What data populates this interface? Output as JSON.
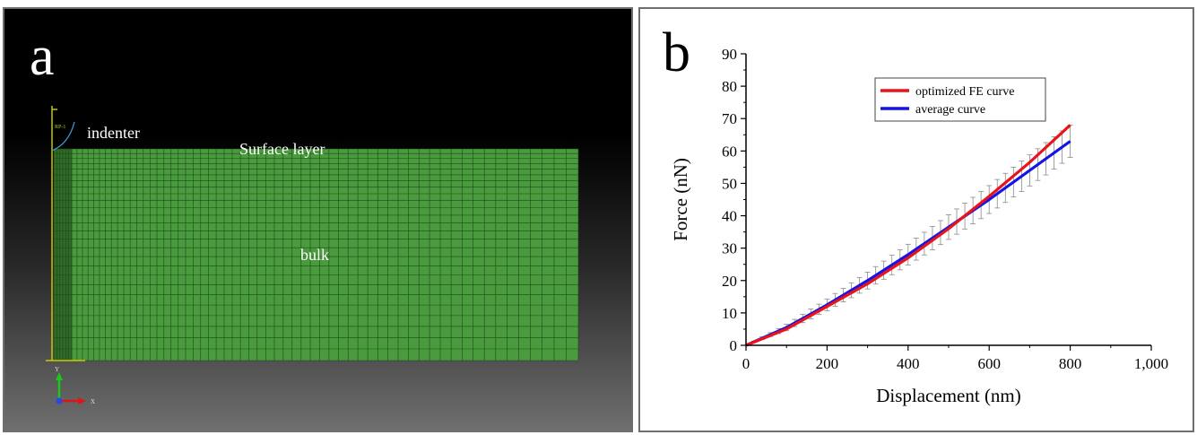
{
  "panel_a": {
    "letter": "a",
    "labels": {
      "indenter": "indenter",
      "surface_layer": "Surface layer",
      "bulk": "bulk"
    },
    "indenter_node_label": "RP-1",
    "axis_triad": {
      "y_label": "Y",
      "x_label": "X"
    },
    "mesh": {
      "columns": 64,
      "rows": 26,
      "fine_columns": 6,
      "color": "#4a9a3e",
      "line_color": "#1f4a1a"
    },
    "colors": {
      "indenter": "#c8c800",
      "background_top": "#000000",
      "background_bottom": "#6f6f6f"
    }
  },
  "panel_b": {
    "letter": "b",
    "chart_data": {
      "type": "line",
      "xlabel": "Displacement (nm)",
      "ylabel": "Force (nN)",
      "xlim": [
        0,
        1000
      ],
      "ylim": [
        0,
        90
      ],
      "xticks": [
        0,
        200,
        400,
        600,
        800,
        1000
      ],
      "xtick_labels": [
        "0",
        "200",
        "400",
        "600",
        "800",
        "1,000"
      ],
      "yticks": [
        0,
        10,
        20,
        30,
        40,
        50,
        60,
        70,
        80,
        90
      ],
      "ytick_labels": [
        "0",
        "10",
        "20",
        "30",
        "40",
        "50",
        "60",
        "70",
        "80",
        "90"
      ],
      "grid": false,
      "legend_position": "top-center",
      "series": [
        {
          "name": "optimized FE curve",
          "color": "#e8141c",
          "x": [
            0,
            100,
            200,
            300,
            400,
            500,
            600,
            700,
            800
          ],
          "y": [
            0,
            5,
            12,
            19,
            27,
            36,
            46,
            56.5,
            68
          ]
        },
        {
          "name": "average curve",
          "color": "#1414e6",
          "x": [
            0,
            100,
            200,
            300,
            400,
            500,
            600,
            700,
            800
          ],
          "y": [
            0,
            5.5,
            12.5,
            20,
            28,
            36.5,
            45,
            54,
            63
          ],
          "error_bar": {
            "x": [
              20,
              40,
              60,
              80,
              100,
              120,
              140,
              160,
              180,
              200,
              220,
              240,
              260,
              280,
              300,
              320,
              340,
              360,
              380,
              400,
              420,
              440,
              460,
              480,
              500,
              520,
              540,
              560,
              580,
              600,
              620,
              640,
              660,
              680,
              700,
              720,
              740,
              760,
              780,
              800
            ],
            "plus": [
              0.2,
              0.4,
              0.6,
              0.8,
              1.0,
              1.1,
              1.3,
              1.5,
              1.6,
              1.8,
              2.0,
              2.1,
              2.3,
              2.4,
              2.6,
              2.7,
              2.8,
              3.0,
              3.1,
              3.2,
              3.4,
              3.5,
              3.6,
              3.7,
              3.8,
              3.9,
              4.0,
              4.1,
              4.2,
              4.3,
              4.4,
              4.5,
              4.6,
              4.7,
              4.8,
              4.9,
              5.0,
              5.0,
              5.0,
              5.0
            ],
            "minus": [
              0.2,
              0.4,
              0.6,
              0.8,
              1.0,
              1.1,
              1.3,
              1.5,
              1.6,
              1.8,
              2.0,
              2.1,
              2.3,
              2.4,
              2.6,
              2.7,
              2.8,
              3.0,
              3.1,
              3.2,
              3.4,
              3.5,
              3.6,
              3.7,
              3.8,
              3.9,
              4.0,
              4.1,
              4.2,
              4.3,
              4.4,
              4.5,
              4.6,
              4.7,
              4.8,
              4.9,
              5.0,
              5.0,
              5.0,
              5.0
            ]
          }
        }
      ]
    }
  }
}
